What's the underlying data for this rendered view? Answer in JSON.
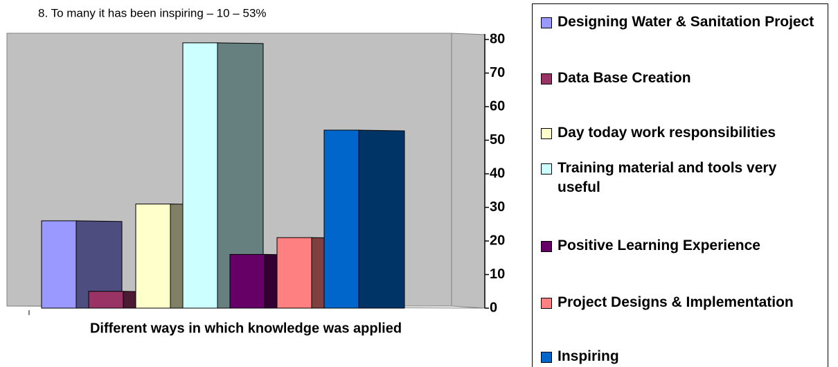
{
  "chart_data": {
    "type": "bar3d",
    "annotation": "8.   To many it has been inspiring – 10 – 53%",
    "xlabel": "Different ways in which knowledge was applied",
    "ylim": [
      0,
      80
    ],
    "yticks": [
      0,
      10,
      20,
      30,
      40,
      50,
      60,
      70,
      80
    ],
    "series": [
      {
        "name": "Designing Water & Sanitation Project",
        "color": "#9999FF",
        "values": [
          26
        ]
      },
      {
        "name": "Data Base Creation",
        "color": "#993366",
        "values": [
          5
        ]
      },
      {
        "name": "Day today work responsibilities",
        "color": "#FFFFCC",
        "values": [
          31
        ]
      },
      {
        "name": "Training material and tools very useful",
        "color": "#CCFFFF",
        "values": [
          79
        ]
      },
      {
        "name": "Positive Learning Experience",
        "color": "#660066",
        "values": [
          16
        ]
      },
      {
        "name": "Project Designs & Implementation",
        "color": "#FF8080",
        "values": [
          21
        ]
      },
      {
        "name": "Inspiring",
        "color": "#0066CC",
        "values": [
          53
        ]
      }
    ]
  }
}
